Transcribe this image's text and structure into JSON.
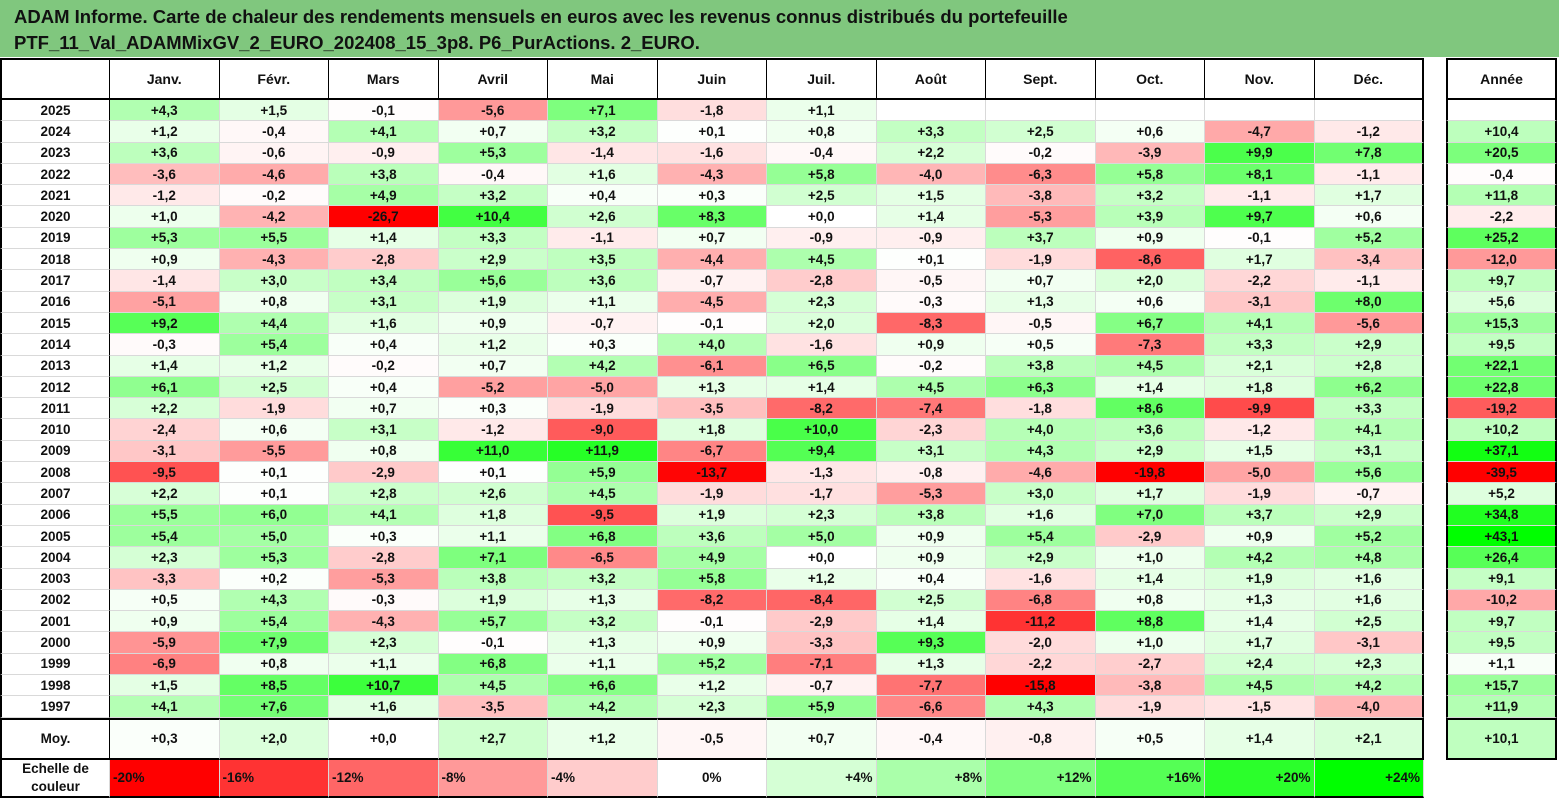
{
  "header": {
    "line1": "ADAM Informe. Carte de chaleur des rendements mensuels en euros avec les revenus connus distribués du portefeuille",
    "line2": "PTF_11_Val_ADAMMixGV_2_EURO_202408_15_3p8. P6_PurActions. 2_EURO."
  },
  "chart_data": {
    "type": "heatmap",
    "columns": [
      "Janv.",
      "Févr.",
      "Mars",
      "Avril",
      "Mai",
      "Juin",
      "Juil.",
      "Août",
      "Sept.",
      "Oct.",
      "Nov.",
      "Déc."
    ],
    "annual_label": "Année",
    "rows": [
      {
        "year": "2025",
        "months": [
          "+4,3",
          "+1,5",
          "-0,1",
          "-5,6",
          "+7,1",
          "-1,8",
          "+1,1",
          "",
          "",
          "",
          "",
          ""
        ],
        "annual": ""
      },
      {
        "year": "2024",
        "months": [
          "+1,2",
          "-0,4",
          "+4,1",
          "+0,7",
          "+3,2",
          "+0,1",
          "+0,8",
          "+3,3",
          "+2,5",
          "+0,6",
          "-4,7",
          "-1,2"
        ],
        "annual": "+10,4"
      },
      {
        "year": "2023",
        "months": [
          "+3,6",
          "-0,6",
          "-0,9",
          "+5,3",
          "-1,4",
          "-1,6",
          "-0,4",
          "+2,2",
          "-0,2",
          "-3,9",
          "+9,9",
          "+7,8"
        ],
        "annual": "+20,5"
      },
      {
        "year": "2022",
        "months": [
          "-3,6",
          "-4,6",
          "+3,8",
          "-0,4",
          "+1,6",
          "-4,3",
          "+5,8",
          "-4,0",
          "-6,3",
          "+5,8",
          "+8,1",
          "-1,1"
        ],
        "annual": "-0,4"
      },
      {
        "year": "2021",
        "months": [
          "-1,2",
          "-0,2",
          "+4,9",
          "+3,2",
          "+0,4",
          "+0,3",
          "+2,5",
          "+1,5",
          "-3,8",
          "+3,2",
          "-1,1",
          "+1,7"
        ],
        "annual": "+11,8"
      },
      {
        "year": "2020",
        "months": [
          "+1,0",
          "-4,2",
          "-26,7",
          "+10,4",
          "+2,6",
          "+8,3",
          "+0,0",
          "+1,4",
          "-5,3",
          "+3,9",
          "+9,7",
          "+0,6"
        ],
        "annual": "-2,2"
      },
      {
        "year": "2019",
        "months": [
          "+5,3",
          "+5,5",
          "+1,4",
          "+3,3",
          "-1,1",
          "+0,7",
          "-0,9",
          "-0,9",
          "+3,7",
          "+0,9",
          "-0,1",
          "+5,2"
        ],
        "annual": "+25,2"
      },
      {
        "year": "2018",
        "months": [
          "+0,9",
          "-4,3",
          "-2,8",
          "+2,9",
          "+3,5",
          "-4,4",
          "+4,5",
          "+0,1",
          "-1,9",
          "-8,6",
          "+1,7",
          "-3,4"
        ],
        "annual": "-12,0"
      },
      {
        "year": "2017",
        "months": [
          "-1,4",
          "+3,0",
          "+3,4",
          "+5,6",
          "+3,6",
          "-0,7",
          "-2,8",
          "-0,5",
          "+0,7",
          "+2,0",
          "-2,2",
          "-1,1"
        ],
        "annual": "+9,7"
      },
      {
        "year": "2016",
        "months": [
          "-5,1",
          "+0,8",
          "+3,1",
          "+1,9",
          "+1,1",
          "-4,5",
          "+2,3",
          "-0,3",
          "+1,3",
          "+0,6",
          "-3,1",
          "+8,0"
        ],
        "annual": "+5,6"
      },
      {
        "year": "2015",
        "months": [
          "+9,2",
          "+4,4",
          "+1,6",
          "+0,9",
          "-0,7",
          "-0,1",
          "+2,0",
          "-8,3",
          "-0,5",
          "+6,7",
          "+4,1",
          "-5,6"
        ],
        "annual": "+15,3"
      },
      {
        "year": "2014",
        "months": [
          "-0,3",
          "+5,4",
          "+0,4",
          "+1,2",
          "+0,3",
          "+4,0",
          "-1,6",
          "+0,9",
          "+0,5",
          "-7,3",
          "+3,3",
          "+2,9"
        ],
        "annual": "+9,5"
      },
      {
        "year": "2013",
        "months": [
          "+1,4",
          "+1,2",
          "-0,2",
          "+0,7",
          "+4,2",
          "-6,1",
          "+6,5",
          "-0,2",
          "+3,8",
          "+4,5",
          "+2,1",
          "+2,8"
        ],
        "annual": "+22,1"
      },
      {
        "year": "2012",
        "months": [
          "+6,1",
          "+2,5",
          "+0,4",
          "-5,2",
          "-5,0",
          "+1,3",
          "+1,4",
          "+4,5",
          "+6,3",
          "+1,4",
          "+1,8",
          "+6,2"
        ],
        "annual": "+22,8"
      },
      {
        "year": "2011",
        "months": [
          "+2,2",
          "-1,9",
          "+0,7",
          "+0,3",
          "-1,9",
          "-3,5",
          "-8,2",
          "-7,4",
          "-1,8",
          "+8,6",
          "-9,9",
          "+3,3"
        ],
        "annual": "-19,2"
      },
      {
        "year": "2010",
        "months": [
          "-2,4",
          "+0,6",
          "+3,1",
          "-1,2",
          "-9,0",
          "+1,8",
          "+10,0",
          "-2,3",
          "+4,0",
          "+3,6",
          "-1,2",
          "+4,1"
        ],
        "annual": "+10,2"
      },
      {
        "year": "2009",
        "months": [
          "-3,1",
          "-5,5",
          "+0,8",
          "+11,0",
          "+11,9",
          "-6,7",
          "+9,4",
          "+3,1",
          "+4,3",
          "+2,9",
          "+1,5",
          "+3,1"
        ],
        "annual": "+37,1"
      },
      {
        "year": "2008",
        "months": [
          "-9,5",
          "+0,1",
          "-2,9",
          "+0,1",
          "+5,9",
          "-13,7",
          "-1,3",
          "-0,8",
          "-4,6",
          "-19,8",
          "-5,0",
          "+5,6"
        ],
        "annual": "-39,5"
      },
      {
        "year": "2007",
        "months": [
          "+2,2",
          "+0,1",
          "+2,8",
          "+2,6",
          "+4,5",
          "-1,9",
          "-1,7",
          "-5,3",
          "+3,0",
          "+1,7",
          "-1,9",
          "-0,7"
        ],
        "annual": "+5,2"
      },
      {
        "year": "2006",
        "months": [
          "+5,5",
          "+6,0",
          "+4,1",
          "+1,8",
          "-9,5",
          "+1,9",
          "+2,3",
          "+3,8",
          "+1,6",
          "+7,0",
          "+3,7",
          "+2,9"
        ],
        "annual": "+34,8"
      },
      {
        "year": "2005",
        "months": [
          "+5,4",
          "+5,0",
          "+0,3",
          "+1,1",
          "+6,8",
          "+3,6",
          "+5,0",
          "+0,9",
          "+5,4",
          "-2,9",
          "+0,9",
          "+5,2"
        ],
        "annual": "+43,1"
      },
      {
        "year": "2004",
        "months": [
          "+2,3",
          "+5,3",
          "-2,8",
          "+7,1",
          "-6,5",
          "+4,9",
          "+0,0",
          "+0,9",
          "+2,9",
          "+1,0",
          "+4,2",
          "+4,8"
        ],
        "annual": "+26,4"
      },
      {
        "year": "2003",
        "months": [
          "-3,3",
          "+0,2",
          "-5,3",
          "+3,8",
          "+3,2",
          "+5,8",
          "+1,2",
          "+0,4",
          "-1,6",
          "+1,4",
          "+1,9",
          "+1,6"
        ],
        "annual": "+9,1"
      },
      {
        "year": "2002",
        "months": [
          "+0,5",
          "+4,3",
          "-0,3",
          "+1,9",
          "+1,3",
          "-8,2",
          "-8,4",
          "+2,5",
          "-6,8",
          "+0,8",
          "+1,3",
          "+1,6"
        ],
        "annual": "-10,2"
      },
      {
        "year": "2001",
        "months": [
          "+0,9",
          "+5,4",
          "-4,3",
          "+5,7",
          "+3,2",
          "-0,1",
          "-2,9",
          "+1,4",
          "-11,2",
          "+8,8",
          "+1,4",
          "+2,5"
        ],
        "annual": "+9,7"
      },
      {
        "year": "2000",
        "months": [
          "-5,9",
          "+7,9",
          "+2,3",
          "-0,1",
          "+1,3",
          "+0,9",
          "-3,3",
          "+9,3",
          "-2,0",
          "+1,0",
          "+1,7",
          "-3,1"
        ],
        "annual": "+9,5"
      },
      {
        "year": "1999",
        "months": [
          "-6,9",
          "+0,8",
          "+1,1",
          "+6,8",
          "+1,1",
          "+5,2",
          "-7,1",
          "+1,3",
          "-2,2",
          "-2,7",
          "+2,4",
          "+2,3"
        ],
        "annual": "+1,1"
      },
      {
        "year": "1998",
        "months": [
          "+1,5",
          "+8,5",
          "+10,7",
          "+4,5",
          "+6,6",
          "+1,2",
          "-0,7",
          "-7,7",
          "-15,8",
          "-3,8",
          "+4,5",
          "+4,2"
        ],
        "annual": "+15,7"
      },
      {
        "year": "1997",
        "months": [
          "+4,1",
          "+7,6",
          "+1,6",
          "-3,5",
          "+4,2",
          "+2,3",
          "+5,9",
          "-6,6",
          "+4,3",
          "-1,9",
          "-1,5",
          "-4,0"
        ],
        "annual": "+11,9"
      }
    ],
    "average": {
      "label": "Moy.",
      "months": [
        "+0,3",
        "+2,0",
        "+0,0",
        "+2,7",
        "+1,2",
        "-0,5",
        "+0,7",
        "-0,4",
        "-0,8",
        "+0,5",
        "+1,4",
        "+2,1"
      ],
      "annual": "+10,1"
    },
    "legend": {
      "label": "Echelle de couleur",
      "stops": [
        "-20%",
        "-16%",
        "-12%",
        "-8%",
        "-4%",
        "0%",
        "+4%",
        "+8%",
        "+12%",
        "+16%",
        "+20%",
        "+24%"
      ],
      "colors": {
        "negative_max": "#ff0000",
        "zero": "#ffffff",
        "positive_max": "#00ff00"
      }
    }
  }
}
